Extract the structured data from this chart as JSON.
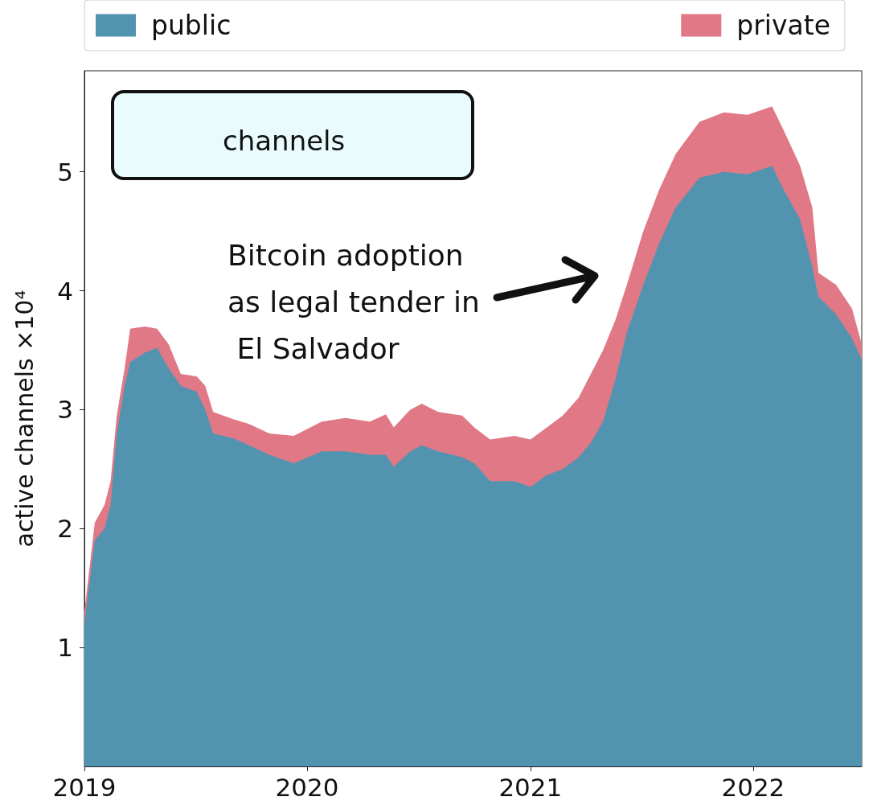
{
  "chart_data": {
    "type": "area",
    "stacked": true,
    "title": "channels",
    "ylabel": "active channels ×10⁴",
    "x": [
      "2019-01-01",
      "2019-01-18",
      "2019-02-03",
      "2019-02-13",
      "2019-02-23",
      "2019-03-08",
      "2019-03-17",
      "2019-04-10",
      "2019-04-30",
      "2019-05-19",
      "2019-06-08",
      "2019-07-04",
      "2019-07-18",
      "2019-07-31",
      "2019-09-02",
      "2019-09-28",
      "2019-10-31",
      "2019-12-10",
      "2020-01-25",
      "2020-03-04",
      "2020-04-13",
      "2020-05-09",
      "2020-05-22",
      "2020-06-18",
      "2020-07-07",
      "2020-08-03",
      "2020-09-11",
      "2020-10-01",
      "2020-10-27",
      "2020-12-06",
      "2021-01-01",
      "2021-01-28",
      "2021-02-23",
      "2021-03-21",
      "2021-04-10",
      "2021-04-30",
      "2021-05-20",
      "2021-06-08",
      "2021-07-05",
      "2021-07-31",
      "2021-08-27",
      "2021-10-05",
      "2021-11-14",
      "2021-12-23",
      "2022-02-01",
      "2022-02-20",
      "2022-03-19",
      "2022-04-08",
      "2022-04-18",
      "2022-05-17",
      "2022-06-12",
      "2022-06-28"
    ],
    "series": [
      {
        "name": "public",
        "color": "#5294b0",
        "values": [
          1.2,
          1.9,
          2.0,
          2.2,
          2.8,
          3.2,
          3.4,
          3.48,
          3.52,
          3.35,
          3.2,
          3.15,
          3.0,
          2.8,
          2.76,
          2.7,
          2.62,
          2.55,
          2.65,
          2.65,
          2.62,
          2.62,
          2.52,
          2.65,
          2.7,
          2.65,
          2.6,
          2.55,
          2.4,
          2.4,
          2.35,
          2.45,
          2.5,
          2.6,
          2.72,
          2.9,
          3.25,
          3.65,
          4.05,
          4.4,
          4.7,
          4.95,
          5.0,
          4.98,
          5.05,
          4.85,
          4.6,
          4.2,
          3.95,
          3.8,
          3.6,
          3.42
        ]
      },
      {
        "name": "private",
        "color": "#e07886",
        "values": [
          0.1,
          0.15,
          0.2,
          0.2,
          0.15,
          0.15,
          0.28,
          0.22,
          0.16,
          0.2,
          0.1,
          0.13,
          0.2,
          0.18,
          0.16,
          0.18,
          0.18,
          0.23,
          0.25,
          0.28,
          0.28,
          0.34,
          0.33,
          0.35,
          0.35,
          0.33,
          0.35,
          0.3,
          0.35,
          0.38,
          0.4,
          0.4,
          0.45,
          0.5,
          0.58,
          0.6,
          0.5,
          0.4,
          0.45,
          0.45,
          0.45,
          0.47,
          0.5,
          0.5,
          0.5,
          0.5,
          0.45,
          0.5,
          0.2,
          0.25,
          0.25,
          0.13
        ]
      }
    ],
    "xlim": [
      "2019-01-01",
      "2022-06-28"
    ],
    "xticks": [
      "2019",
      "2020",
      "2021",
      "2022"
    ],
    "ylim": [
      0,
      5.85
    ],
    "yticks": [
      1,
      2,
      3,
      4,
      5
    ],
    "grid": false,
    "legend": "top",
    "annotations": [
      "Bitcoin adoption as legal tender in El Salvador"
    ]
  }
}
